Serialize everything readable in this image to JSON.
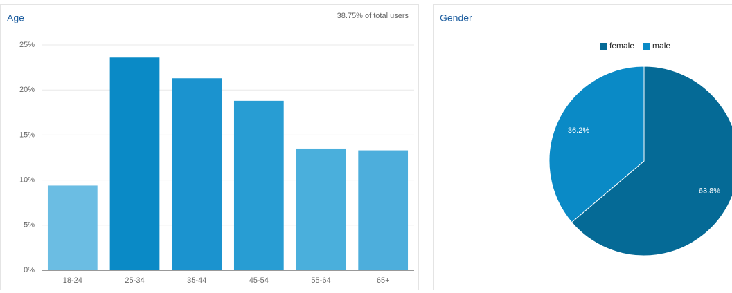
{
  "chart_data": [
    {
      "type": "bar",
      "title": "Age",
      "subtitle": "38.75% of total users",
      "categories": [
        "18-24",
        "25-34",
        "35-44",
        "45-54",
        "55-64",
        "65+"
      ],
      "values": [
        9.4,
        23.6,
        21.3,
        18.8,
        13.5,
        13.3
      ],
      "colors": [
        "#6bbde3",
        "#0a8ac6",
        "#1b93cf",
        "#289dd3",
        "#4aafdc",
        "#4daedc"
      ],
      "ylim": [
        0,
        25
      ],
      "yticks": [
        {
          "value": 0,
          "label": "0%"
        },
        {
          "value": 5,
          "label": "5%"
        },
        {
          "value": 10,
          "label": "10%"
        },
        {
          "value": 15,
          "label": "15%"
        },
        {
          "value": 20,
          "label": "20%"
        },
        {
          "value": 25,
          "label": "25%"
        }
      ],
      "grid": true
    },
    {
      "type": "pie",
      "title": "Gender",
      "categories": [
        "female",
        "male"
      ],
      "values": [
        63.8,
        36.2
      ],
      "value_labels": [
        "63.8%",
        "36.2%"
      ],
      "colors": [
        "#056a96",
        "#0a8ac6"
      ],
      "legend": "top"
    }
  ]
}
